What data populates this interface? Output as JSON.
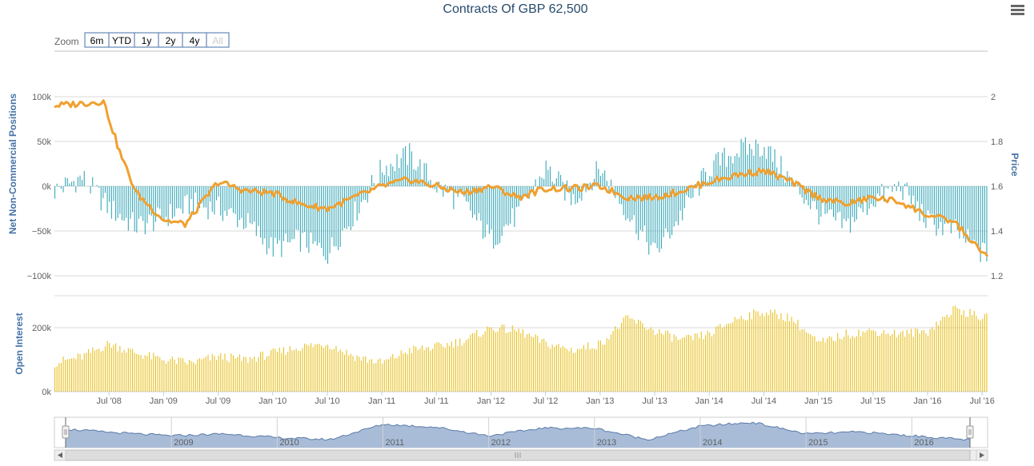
{
  "title": "Contracts Of GBP 62,500",
  "zoom": {
    "label": "Zoom",
    "buttons": [
      "6m",
      "YTD",
      "1y",
      "2y",
      "4y",
      "All"
    ],
    "disabled": "All"
  },
  "menu_icon": "hamburger-menu-icon",
  "colors": {
    "price_line": "#f0a030",
    "net_bars": "#3aa8b8",
    "oi_bars": "#e8c020",
    "navigator_fill": "#a8bcd8",
    "navigator_line": "#5a7aa8",
    "axis_title": "#4572a7"
  },
  "chart_data": [
    {
      "type": "bar+line",
      "left_axis": {
        "label": "Net Non-Commercial Positions",
        "ticks": [
          "100k",
          "50k",
          "0k",
          "−50k",
          "−100k"
        ],
        "ylim": [
          -100000,
          100000
        ]
      },
      "right_axis": {
        "label": "Price",
        "ticks": [
          "2",
          "1.8",
          "1.6",
          "1.4",
          "1.2"
        ],
        "ylim": [
          1.2,
          2.0
        ]
      },
      "series": [
        {
          "name": "Net Non-Commercial Positions",
          "kind": "bar",
          "x": [
            2008.0,
            2008.25,
            2008.5,
            2008.75,
            2009.0,
            2009.25,
            2009.5,
            2009.75,
            2010.0,
            2010.25,
            2010.5,
            2010.75,
            2011.0,
            2011.25,
            2011.5,
            2011.75,
            2012.0,
            2012.25,
            2012.5,
            2012.75,
            2013.0,
            2013.25,
            2013.5,
            2013.75,
            2014.0,
            2014.25,
            2014.5,
            2014.75,
            2015.0,
            2015.25,
            2015.5,
            2015.75,
            2016.0,
            2016.25,
            2016.5
          ],
          "values": [
            -5000,
            10000,
            -25000,
            -45000,
            -35000,
            -20000,
            -25000,
            -40000,
            -70000,
            -60000,
            -75000,
            -30000,
            20000,
            35000,
            0,
            -20000,
            -60000,
            -30000,
            20000,
            -15000,
            20000,
            -30000,
            -75000,
            -30000,
            20000,
            40000,
            45000,
            5000,
            -30000,
            -45000,
            -15000,
            0,
            -40000,
            -50000,
            -75000
          ]
        },
        {
          "name": "Price",
          "kind": "line",
          "x": [
            2008.0,
            2008.25,
            2008.45,
            2008.6,
            2008.75,
            2009.0,
            2009.2,
            2009.5,
            2009.75,
            2010.0,
            2010.25,
            2010.5,
            2010.75,
            2011.0,
            2011.25,
            2011.5,
            2011.75,
            2012.0,
            2012.25,
            2012.5,
            2012.75,
            2013.0,
            2013.25,
            2013.5,
            2013.75,
            2014.0,
            2014.25,
            2014.5,
            2014.75,
            2015.0,
            2015.25,
            2015.5,
            2015.75,
            2016.0,
            2016.25,
            2016.5
          ],
          "values": [
            1.96,
            1.97,
            1.98,
            1.75,
            1.57,
            1.45,
            1.43,
            1.62,
            1.58,
            1.57,
            1.52,
            1.5,
            1.55,
            1.6,
            1.63,
            1.6,
            1.57,
            1.6,
            1.55,
            1.59,
            1.59,
            1.6,
            1.55,
            1.55,
            1.58,
            1.62,
            1.65,
            1.67,
            1.62,
            1.55,
            1.52,
            1.55,
            1.53,
            1.47,
            1.44,
            1.3
          ]
        }
      ]
    },
    {
      "type": "bar",
      "left_axis": {
        "label": "Open Interest",
        "ticks": [
          "200k",
          "0k"
        ],
        "ylim": [
          0,
          300000
        ]
      },
      "x_ticks": [
        "Jul '08",
        "Jan '09",
        "Jul '09",
        "Jan '10",
        "Jul '10",
        "Jan '11",
        "Jul '11",
        "Jan '12",
        "Jul '12",
        "Jan '13",
        "Jul '13",
        "Jan '14",
        "Jul '14",
        "Jan '15",
        "Jul '15",
        "Jan '16",
        "Jul '16"
      ],
      "series": [
        {
          "name": "Open Interest",
          "kind": "bar",
          "x": [
            2008.0,
            2008.25,
            2008.5,
            2008.75,
            2009.0,
            2009.25,
            2009.5,
            2009.75,
            2010.0,
            2010.25,
            2010.5,
            2010.75,
            2011.0,
            2011.25,
            2011.5,
            2011.75,
            2012.0,
            2012.25,
            2012.5,
            2012.75,
            2013.0,
            2013.25,
            2013.5,
            2013.75,
            2014.0,
            2014.25,
            2014.5,
            2014.75,
            2015.0,
            2015.25,
            2015.5,
            2015.75,
            2016.0,
            2016.25,
            2016.5
          ],
          "values": [
            90000,
            110000,
            150000,
            120000,
            100000,
            90000,
            110000,
            100000,
            120000,
            140000,
            150000,
            110000,
            90000,
            130000,
            140000,
            160000,
            200000,
            190000,
            150000,
            130000,
            150000,
            230000,
            190000,
            160000,
            180000,
            230000,
            250000,
            230000,
            150000,
            180000,
            190000,
            180000,
            190000,
            260000,
            230000
          ]
        }
      ]
    },
    {
      "type": "area",
      "role": "navigator",
      "x_ticks": [
        "2009",
        "2010",
        "2011",
        "2012",
        "2013",
        "2014",
        "2015",
        "2016"
      ],
      "x": [
        2008.0,
        2008.5,
        2009.0,
        2009.5,
        2010.0,
        2010.5,
        2011.0,
        2011.5,
        2012.0,
        2012.5,
        2013.0,
        2013.5,
        2014.0,
        2014.5,
        2015.0,
        2015.5,
        2016.0,
        2016.5
      ],
      "values": [
        -5000,
        -25000,
        -40000,
        -30000,
        -50000,
        -60000,
        20000,
        5000,
        -40000,
        0,
        0,
        -60000,
        10000,
        30000,
        -30000,
        -20000,
        -40000,
        -60000
      ]
    }
  ]
}
